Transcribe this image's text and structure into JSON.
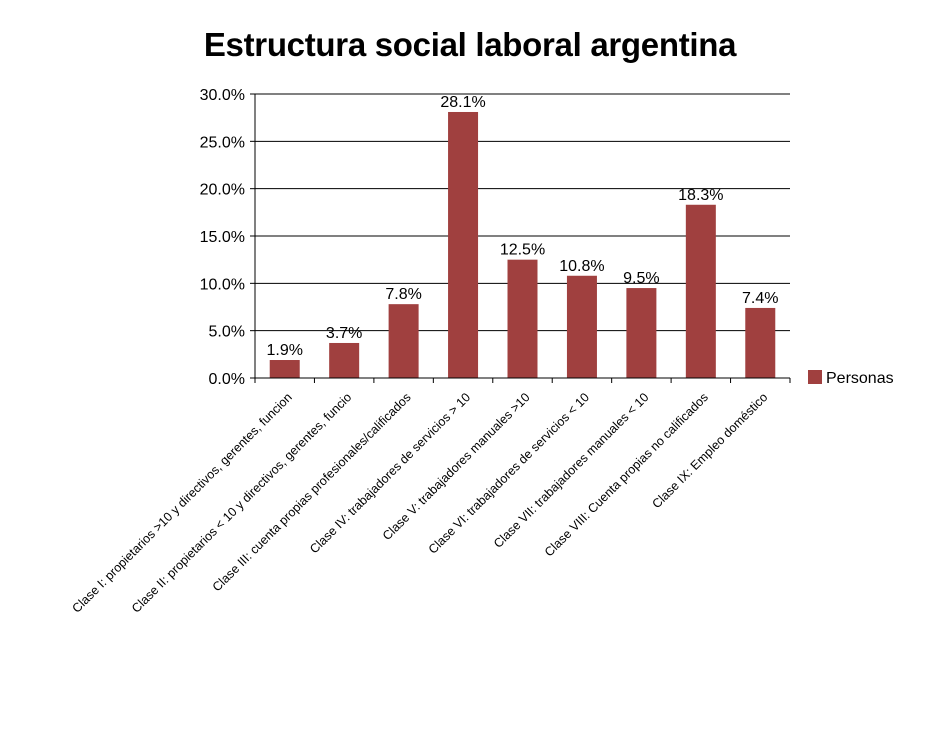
{
  "chart_data": {
    "type": "bar",
    "title": "Estructura social laboral argentina",
    "xlabel": "",
    "ylabel": "",
    "ylim": [
      0,
      30
    ],
    "yticks": [
      "0.0%",
      "5.0%",
      "10.0%",
      "15.0%",
      "20.0%",
      "25.0%",
      "30.0%"
    ],
    "grid": true,
    "legend_position": "right",
    "bar_color": "#a0403f",
    "categories": [
      "Clase I: propietarios >10 y directivos, gerentes, funcion",
      "Clase II: propietarios < 10 y directivos, gerentes, funcio",
      "Clase III: cuenta propias profesionales/calificados",
      "Clase IV: trabajadores de servicios > 10",
      "Clase V: trabajadores manuales >10",
      "Clase VI: trabajadores de servicios < 10",
      "Clase VII: trabajadores manuales < 10",
      "Clase VIII: Cuenta propias no calificados",
      "Clase IX: Empleo doméstico"
    ],
    "series": [
      {
        "name": "Personas",
        "values": [
          1.9,
          3.7,
          7.8,
          28.1,
          12.5,
          10.8,
          9.5,
          18.3,
          7.4
        ],
        "labels": [
          "1.9%",
          "3.7%",
          "7.8%",
          "28.1%",
          "12.5%",
          "10.8%",
          "9.5%",
          "18.3%",
          "7.4%"
        ]
      }
    ]
  }
}
